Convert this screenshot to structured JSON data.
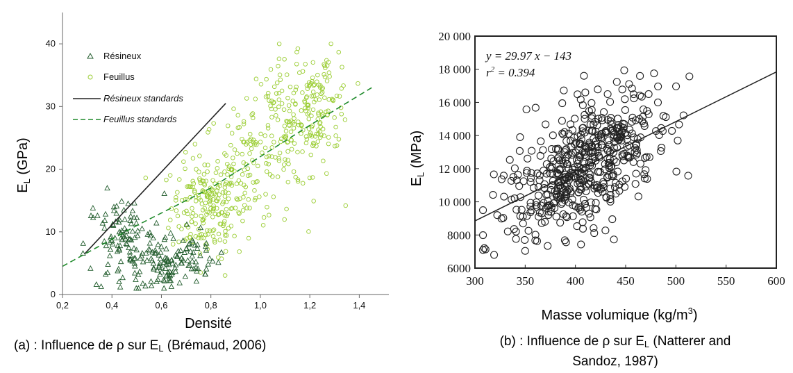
{
  "chart_data": [
    {
      "type": "scatter",
      "xlabel": "Densité",
      "ylabel_main": "E",
      "ylabel_sub": "L",
      "ylabel_unit": " (GPa)",
      "xlim": [
        0.2,
        1.5
      ],
      "ylim": [
        0,
        45
      ],
      "xticks": [
        "0,2",
        "0,4",
        "0,6",
        "0,8",
        "1,0",
        "1,2",
        "1,4"
      ],
      "xtick_values": [
        0.2,
        0.4,
        0.6,
        0.8,
        1.0,
        1.2,
        1.4
      ],
      "yticks": [
        "0",
        "10",
        "20",
        "30",
        "40"
      ],
      "ytick_values": [
        0,
        10,
        20,
        30,
        40
      ],
      "caption_prefix": "(a)  : Influence de ρ sur E",
      "caption_sub": "L",
      "caption_suffix": " (Brémaud, 2006)",
      "legend": {
        "placement": "top-left",
        "entries": [
          {
            "label": "Résineux",
            "marker": "triangle",
            "color": "#1f5a2a"
          },
          {
            "label": "Feuillus",
            "marker": "circle",
            "color": "#9acd32"
          },
          {
            "label": "Résineux standards",
            "line": "solid",
            "color": "#222222"
          },
          {
            "label": "Feuillus standards",
            "line": "dashed",
            "color": "#1e8a2a"
          }
        ]
      },
      "series": [
        {
          "name": "Résineux",
          "marker": "triangle",
          "color": "#1f5a2a",
          "clusters": [
            {
              "cx": 0.45,
              "cy": 8,
              "sx": 0.08,
              "sy": 4,
              "n": 120
            },
            {
              "cx": 0.62,
              "cy": 5,
              "sx": 0.05,
              "sy": 2.2,
              "n": 70
            },
            {
              "cx": 0.72,
              "cy": 6,
              "sx": 0.06,
              "sy": 2,
              "n": 40
            }
          ]
        },
        {
          "name": "Feuillus",
          "marker": "circle",
          "color": "#9acd32",
          "clusters": [
            {
              "cx": 0.78,
              "cy": 14,
              "sx": 0.07,
              "sy": 4,
              "n": 180
            },
            {
              "cx": 0.95,
              "cy": 20,
              "sx": 0.09,
              "sy": 5,
              "n": 120
            },
            {
              "cx": 1.12,
              "cy": 27,
              "sx": 0.1,
              "sy": 5,
              "n": 140
            },
            {
              "cx": 1.25,
              "cy": 31,
              "sx": 0.06,
              "sy": 4,
              "n": 90
            }
          ]
        }
      ],
      "lines": [
        {
          "name": "Résineux standards",
          "style": "solid",
          "color": "#222222",
          "points": [
            [
              0.29,
              6.5
            ],
            [
              0.86,
              30.5
            ]
          ]
        },
        {
          "name": "Feuillus standards",
          "style": "dashed",
          "color": "#1e8a2a",
          "points": [
            [
              0.2,
              4.5
            ],
            [
              0.5,
              11
            ],
            [
              0.8,
              17
            ],
            [
              1.0,
              22
            ],
            [
              1.2,
              27
            ],
            [
              1.45,
              33
            ]
          ]
        }
      ]
    },
    {
      "type": "scatter",
      "xlabel_main": "Masse volumique (kg/m",
      "xlabel_sup": "3",
      "xlabel_end": ")",
      "ylabel_main": "E",
      "ylabel_sub": "L",
      "ylabel_unit": " (MPa)",
      "xlim": [
        300,
        600
      ],
      "ylim": [
        6000,
        20000
      ],
      "xticks": [
        "300",
        "350",
        "400",
        "450",
        "500",
        "550",
        "600"
      ],
      "xtick_values": [
        300,
        350,
        400,
        450,
        500,
        550,
        600
      ],
      "yticks": [
        "6000",
        "8000",
        "10 000",
        "12 000",
        "14 000",
        "16 000",
        "18 000",
        "20 000"
      ],
      "ytick_values": [
        6000,
        8000,
        10000,
        12000,
        14000,
        16000,
        18000,
        20000
      ],
      "equation": "y = 29.97 x − 143",
      "r2_prefix": "r",
      "r2_sup": "2",
      "r2_value": " = 0.394",
      "caption_line1_prefix": "(b)  : Influence de ρ sur E",
      "caption_line1_sub": "L",
      "caption_line1_suffix": " (Natterer and",
      "caption_line2": "Sandoz, 1987)",
      "regression": {
        "slope": 29.97,
        "intercept": -143,
        "x": [
          300,
          600
        ]
      },
      "series": [
        {
          "name": "",
          "marker": "open-circle",
          "color": "#222222",
          "clusters": [
            {
              "cx": 410,
              "cy": 12000,
              "sx": 40,
              "sy": 1900,
              "n": 520
            }
          ]
        }
      ]
    }
  ]
}
